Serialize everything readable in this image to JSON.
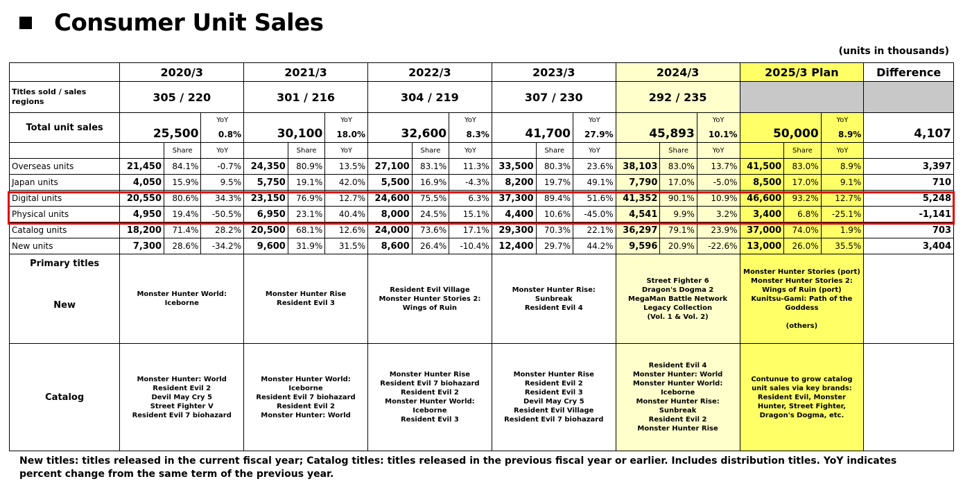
{
  "title": "Consumer Unit Sales",
  "units_note": "(units in thousands)",
  "headers": [
    "2020/3",
    "2021/3",
    "2022/3",
    "2023/3",
    "2024/3",
    "2025/3 Plan",
    "Difference"
  ],
  "titles_row": {
    "label": "Titles sold / sales regions",
    "values": [
      "305 / 220",
      "301 / 216",
      "304 / 219",
      "307 / 230",
      "292 / 235"
    ]
  },
  "total": {
    "label": "Total unit sales",
    "yoy_label": "YoY",
    "values": [
      "25,500",
      "30,100",
      "32,600",
      "41,700",
      "45,893",
      "50,000"
    ],
    "yoy": [
      "0.8%",
      "18.0%",
      "8.3%",
      "27.9%",
      "10.1%",
      "8.9%"
    ],
    "difference": "4,107"
  },
  "subheader": {
    "share": "Share",
    "yoy": "YoY"
  },
  "rows": [
    {
      "label": "Overseas units",
      "cells": [
        [
          "21,450",
          "84.1%",
          "-0.7%"
        ],
        [
          "24,350",
          "80.9%",
          "13.5%"
        ],
        [
          "27,100",
          "83.1%",
          "11.3%"
        ],
        [
          "33,500",
          "80.3%",
          "23.6%"
        ],
        [
          "38,103",
          "83.0%",
          "13.7%"
        ],
        [
          "41,500",
          "83.0%",
          "8.9%"
        ]
      ],
      "difference": "3,397"
    },
    {
      "label": "Japan units",
      "cells": [
        [
          "4,050",
          "15.9%",
          "9.5%"
        ],
        [
          "5,750",
          "19.1%",
          "42.0%"
        ],
        [
          "5,500",
          "16.9%",
          "-4.3%"
        ],
        [
          "8,200",
          "19.7%",
          "49.1%"
        ],
        [
          "7,790",
          "17.0%",
          "-5.0%"
        ],
        [
          "8,500",
          "17.0%",
          "9.1%"
        ]
      ],
      "difference": "710"
    },
    {
      "label": "Digital units",
      "cells": [
        [
          "20,550",
          "80.6%",
          "34.3%"
        ],
        [
          "23,150",
          "76.9%",
          "12.7%"
        ],
        [
          "24,600",
          "75.5%",
          "6.3%"
        ],
        [
          "37,300",
          "89.4%",
          "51.6%"
        ],
        [
          "41,352",
          "90.1%",
          "10.9%"
        ],
        [
          "46,600",
          "93.2%",
          "12.7%"
        ]
      ],
      "difference": "5,248"
    },
    {
      "label": "Physical units",
      "cells": [
        [
          "4,950",
          "19.4%",
          "-50.5%"
        ],
        [
          "6,950",
          "23.1%",
          "40.4%"
        ],
        [
          "8,000",
          "24.5%",
          "15.1%"
        ],
        [
          "4,400",
          "10.6%",
          "-45.0%"
        ],
        [
          "4,541",
          "9.9%",
          "3.2%"
        ],
        [
          "3,400",
          "6.8%",
          "-25.1%"
        ]
      ],
      "difference": "-1,141"
    },
    {
      "label": "Catalog units",
      "cells": [
        [
          "18,200",
          "71.4%",
          "28.2%"
        ],
        [
          "20,500",
          "68.1%",
          "12.6%"
        ],
        [
          "24,000",
          "73.6%",
          "17.1%"
        ],
        [
          "29,300",
          "70.3%",
          "22.1%"
        ],
        [
          "36,297",
          "79.1%",
          "23.9%"
        ],
        [
          "37,000",
          "74.0%",
          "1.9%"
        ]
      ],
      "difference": "703"
    },
    {
      "label": "New units",
      "cells": [
        [
          "7,300",
          "28.6%",
          "-34.2%"
        ],
        [
          "9,600",
          "31.9%",
          "31.5%"
        ],
        [
          "8,600",
          "26.4%",
          "-10.4%"
        ],
        [
          "12,400",
          "29.7%",
          "44.2%"
        ],
        [
          "9,596",
          "20.9%",
          "-22.6%"
        ],
        [
          "13,000",
          "26.0%",
          "35.5%"
        ]
      ],
      "difference": "3,404"
    }
  ],
  "primary": {
    "label": "Primary titles",
    "new_label": "New",
    "catalog_label": "Catalog",
    "new": [
      "Monster Hunter World: Iceborne",
      "Monster Hunter Rise\nResident Evil 3",
      "Resident Evil Village\nMonster Hunter Stories 2: Wings of Ruin",
      "Monster Hunter Rise: Sunbreak\nResident Evil 4",
      "Street Fighter 6\nDragon's Dogma 2\nMegaMan Battle Network Legacy Collection\n(Vol. 1 & Vol. 2)",
      "Monster Hunter Stories (port)\nMonster Hunter Stories 2: Wings of Ruin (port)\nKunitsu-Gami: Path of the Goddess\n\n(others)"
    ],
    "catalog": [
      "Monster Hunter: World\nResident Evil 2\nDevil May Cry 5\nStreet Fighter V\nResident Evil 7 biohazard",
      "Monster Hunter World: Iceborne\nResident Evil 7 biohazard\nResident Evil 2\nMonster Hunter: World",
      "Monster Hunter Rise\nResident Evil 7 biohazard\nResident Evil 2\nMonster Hunter World: Iceborne\nResident Evil 3",
      "Monster Hunter Rise\nResident Evil 2\nResident Evil 3\nDevil May Cry 5\nResident Evil Village\nResident Evil 7 biohazard",
      "Resident Evil 4\nMonster Hunter: World\nMonster Hunter World: Iceborne\nMonster Hunter Rise: Sunbreak\nResident Evil 2\nMonster Hunter Rise",
      "Contunue to grow catalog unit sales via key brands: Resident Evil, Monster Hunter, Street Fighter, Dragon's Dogma, etc."
    ]
  },
  "footnote": "New titles: titles released in the current fiscal year; Catalog titles: titles released in the previous fiscal year or earlier. Includes distribution titles. YoY indicates percent change from the same term of the previous year.",
  "colors": {
    "fy2024_bg": "#ffffcc",
    "fy2025_bg": "#ffff66",
    "highlight_border": "#e00000",
    "empty_bg": "#c8c8c8"
  }
}
